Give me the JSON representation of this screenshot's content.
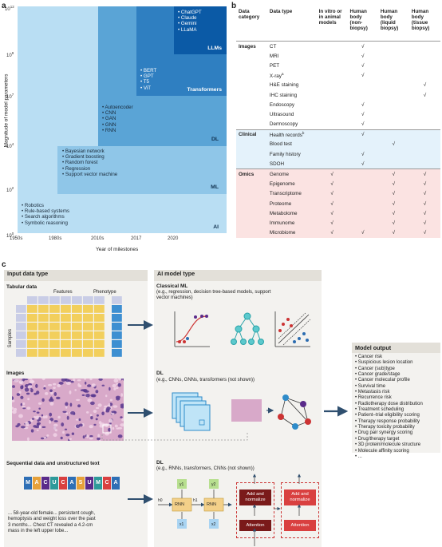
{
  "panel_a": {
    "letter": "a",
    "ylabel": "Magnitude of model parameters",
    "xlabel": "Year of milestones",
    "y_ticks": [
      "10",
      "10",
      "10",
      "10",
      "10",
      "10"
    ],
    "y_exps": [
      "12",
      "9",
      "7",
      "4",
      "2",
      "0"
    ],
    "x_ticks": [
      "1950s",
      "1980s",
      "2010s",
      "2017",
      "2020"
    ],
    "boxes": [
      {
        "tag": "AI",
        "items": [
          "• Robotics",
          "• Rule-based systems",
          "• Search algorithms",
          "• Symbolic reasoning"
        ]
      },
      {
        "tag": "ML",
        "items": [
          "• Bayesian network",
          "• Gradient boosting",
          "• Random forest",
          "• Regression",
          "• Support vector machine"
        ]
      },
      {
        "tag": "DL",
        "items": [
          "• Autoencoder",
          "• CNN",
          "• GAN",
          "• GNN",
          "• RNN"
        ]
      },
      {
        "tag": "Transformers",
        "items": [
          "• BERT",
          "• GPT",
          "• T5",
          "• ViT"
        ]
      },
      {
        "tag": "LLMs",
        "items": [
          "• ChatGPT",
          "• Claude",
          "• Gemini",
          "• LLaMA"
        ]
      }
    ],
    "colors": [
      "#b9def3",
      "#8fc6e8",
      "#5aa4d6",
      "#2f7fc1",
      "#0b5aa6"
    ]
  },
  "panel_b": {
    "letter": "b",
    "headers": [
      "Data category",
      "Data type",
      "In vitro or in animal models",
      "Human body (non-biopsy)",
      "Human body (liquid biopsy)",
      "Human body (tissue biopsy)"
    ],
    "check": "√",
    "groups": [
      {
        "category": "Images",
        "color": "#ffffff",
        "rows": [
          {
            "type": "CT",
            "sup": "",
            "c": [
              0,
              1,
              0,
              0
            ]
          },
          {
            "type": "MRI",
            "sup": "",
            "c": [
              0,
              1,
              0,
              0
            ]
          },
          {
            "type": "PET",
            "sup": "",
            "c": [
              0,
              1,
              0,
              0
            ]
          },
          {
            "type": "X-ray",
            "sup": "a",
            "c": [
              0,
              1,
              0,
              0
            ]
          },
          {
            "type": "H&E staining",
            "sup": "",
            "c": [
              0,
              0,
              0,
              1
            ]
          },
          {
            "type": "IHC staining",
            "sup": "",
            "c": [
              0,
              0,
              0,
              1
            ]
          },
          {
            "type": "Endoscopy",
            "sup": "",
            "c": [
              0,
              1,
              0,
              0
            ]
          },
          {
            "type": "Ultrasound",
            "sup": "",
            "c": [
              0,
              1,
              0,
              0
            ]
          },
          {
            "type": "Dermoscopy",
            "sup": "",
            "c": [
              0,
              1,
              0,
              0
            ]
          }
        ]
      },
      {
        "category": "Clinical",
        "color": "#e4f2fb",
        "rows": [
          {
            "type": "Health records",
            "sup": "b",
            "c": [
              0,
              1,
              0,
              0
            ]
          },
          {
            "type": "Blood test",
            "sup": "",
            "c": [
              0,
              0,
              1,
              0
            ]
          },
          {
            "type": "Family history",
            "sup": "",
            "c": [
              0,
              1,
              0,
              0
            ]
          },
          {
            "type": "SDOH",
            "sup": "",
            "c": [
              0,
              1,
              0,
              0
            ]
          }
        ]
      },
      {
        "category": "Omics",
        "color": "#fbe3e2",
        "rows": [
          {
            "type": "Genome",
            "sup": "",
            "c": [
              1,
              0,
              1,
              1
            ]
          },
          {
            "type": "Epigenome",
            "sup": "",
            "c": [
              1,
              0,
              1,
              1
            ]
          },
          {
            "type": "Transcriptome",
            "sup": "",
            "c": [
              1,
              0,
              1,
              1
            ]
          },
          {
            "type": "Proteome",
            "sup": "",
            "c": [
              1,
              0,
              1,
              1
            ]
          },
          {
            "type": "Metabolome",
            "sup": "",
            "c": [
              1,
              0,
              1,
              1
            ]
          },
          {
            "type": "Immunome",
            "sup": "",
            "c": [
              1,
              0,
              1,
              1
            ]
          },
          {
            "type": "Microbiome",
            "sup": "",
            "c": [
              1,
              1,
              1,
              1
            ]
          }
        ]
      }
    ]
  },
  "panel_c": {
    "letter": "c",
    "input_header": "Input data type",
    "model_header": "AI model type",
    "tabular": {
      "title": "Tabular data",
      "features": "Features",
      "phenotype": "Phenotype",
      "samples": "Samples"
    },
    "images_title": "Images",
    "seq": {
      "title": "Sequential data and unstructured text",
      "dna": "MACUCASUMCA",
      "text": [
        "... 58-year-old female... persistent cough,",
        "hemoptysis and weight loss over the past",
        "3 months... Chest CT revealed a 4.2-cm",
        "mass in the left upper lobe..."
      ]
    },
    "classical": {
      "title": "Classical ML",
      "desc": [
        "(e.g., regression, decision tree-based models, support",
        "vector machines)"
      ]
    },
    "dl1": {
      "title": "DL",
      "desc": "(e.g., CNNs, GNNs, transformers (not shown))"
    },
    "dl2": {
      "title": "DL",
      "desc": "(e.g., RNNs, transformers, CNNs (not shown))"
    },
    "rnn": {
      "cell": "RNN",
      "y1": "y1",
      "y2": "y2",
      "x1": "x1",
      "x2": "x2",
      "h0": "h0",
      "h1": "h1"
    },
    "attn": {
      "add": [
        "Add and",
        "normalize"
      ],
      "attention": "Attention"
    },
    "output": {
      "title": "Model output",
      "items": [
        "• Cancer risk",
        "• Suspicious lesion location",
        "• Cancer (sub)type",
        "• Cancer grade/stage",
        "• Cancer molecular profile",
        "• Survival time",
        "• Metastasis risk",
        "• Recurrence risk",
        "• Radiotherapy dose distribution",
        "• Treatment scheduling",
        "• Patient–trial eligibility scoring",
        "• Therapy response probability",
        "• Therapy toxicity probability",
        "• Drug pair synergy scoring",
        "• Drug/therapy target",
        "• 3D protein/molecule structure",
        "• Molecule affinity scoring",
        "• ..."
      ]
    }
  }
}
